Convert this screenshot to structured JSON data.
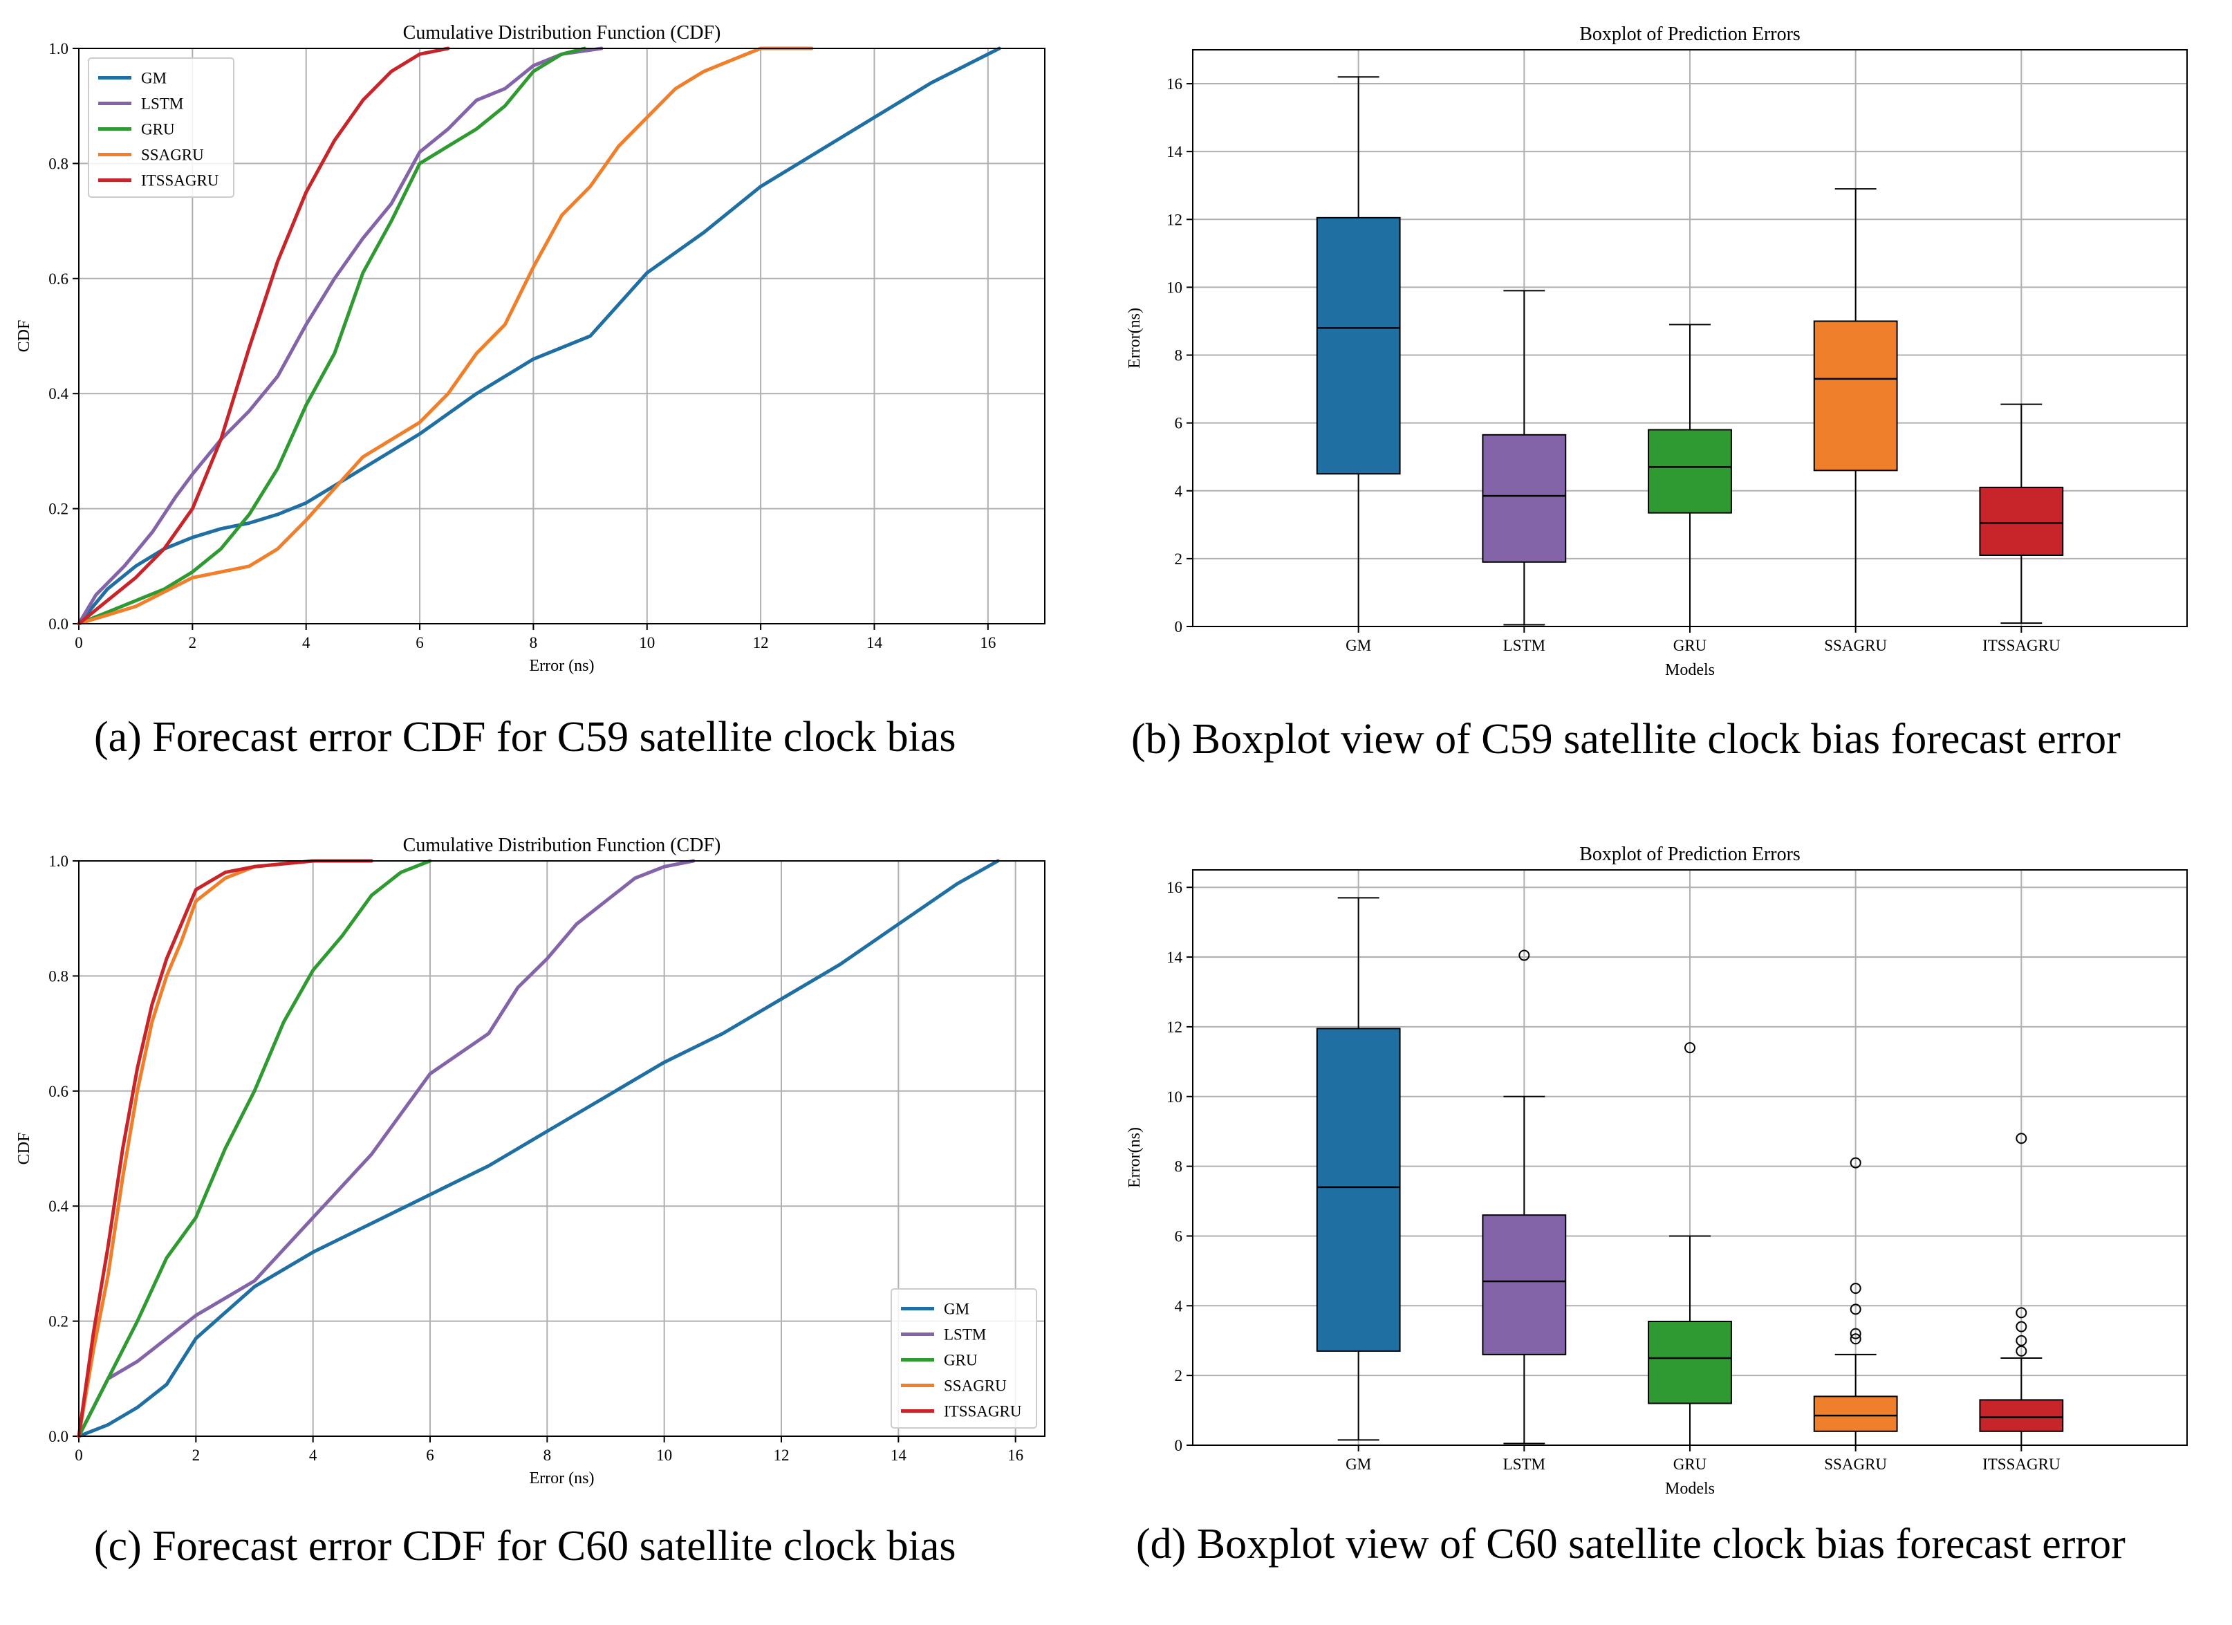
{
  "colors": {
    "GM": "#1f6fa3",
    "LSTM": "#8464a8",
    "GRU": "#2f9a32",
    "SSAGRU": "#ef7f2a",
    "ITSSAGRU": "#c8252a",
    "grid": "#b0b0b0",
    "axis": "#000000"
  },
  "chart_data": [
    {
      "id": "a",
      "type": "line",
      "title": "Cumulative Distribution Function (CDF)",
      "xlabel": "Error (ns)",
      "ylabel": "CDF",
      "xlim": [
        0,
        17
      ],
      "ylim": [
        0,
        1
      ],
      "xticks": [
        0,
        2,
        4,
        6,
        8,
        10,
        12,
        14,
        16
      ],
      "yticks": [
        0.0,
        0.2,
        0.4,
        0.6,
        0.8,
        1.0
      ],
      "legend": "top-left",
      "series": [
        {
          "name": "GM",
          "color": "GM",
          "points": [
            [
              0,
              0
            ],
            [
              0.5,
              0.06
            ],
            [
              1,
              0.1
            ],
            [
              1.5,
              0.13
            ],
            [
              2,
              0.15
            ],
            [
              2.5,
              0.165
            ],
            [
              3,
              0.175
            ],
            [
              3.5,
              0.19
            ],
            [
              4,
              0.21
            ],
            [
              5,
              0.27
            ],
            [
              6,
              0.33
            ],
            [
              7,
              0.4
            ],
            [
              8,
              0.46
            ],
            [
              9,
              0.5
            ],
            [
              10,
              0.61
            ],
            [
              11,
              0.68
            ],
            [
              12,
              0.76
            ],
            [
              13,
              0.82
            ],
            [
              14,
              0.88
            ],
            [
              15,
              0.94
            ],
            [
              16.2,
              1.0
            ]
          ]
        },
        {
          "name": "LSTM",
          "color": "LSTM",
          "points": [
            [
              0,
              0
            ],
            [
              0.3,
              0.05
            ],
            [
              0.8,
              0.1
            ],
            [
              1.3,
              0.16
            ],
            [
              1.7,
              0.22
            ],
            [
              2,
              0.26
            ],
            [
              2.5,
              0.32
            ],
            [
              3,
              0.37
            ],
            [
              3.5,
              0.43
            ],
            [
              4,
              0.52
            ],
            [
              4.5,
              0.6
            ],
            [
              5,
              0.67
            ],
            [
              5.5,
              0.73
            ],
            [
              6,
              0.82
            ],
            [
              6.5,
              0.86
            ],
            [
              7,
              0.91
            ],
            [
              7.5,
              0.93
            ],
            [
              8,
              0.97
            ],
            [
              8.5,
              0.99
            ],
            [
              9.2,
              1.0
            ]
          ]
        },
        {
          "name": "GRU",
          "color": "GRU",
          "points": [
            [
              0,
              0
            ],
            [
              0.5,
              0.02
            ],
            [
              1,
              0.04
            ],
            [
              1.5,
              0.06
            ],
            [
              2,
              0.09
            ],
            [
              2.5,
              0.13
            ],
            [
              3,
              0.19
            ],
            [
              3.5,
              0.27
            ],
            [
              4,
              0.38
            ],
            [
              4.5,
              0.47
            ],
            [
              5,
              0.61
            ],
            [
              5.5,
              0.7
            ],
            [
              6,
              0.8
            ],
            [
              6.5,
              0.83
            ],
            [
              7,
              0.86
            ],
            [
              7.5,
              0.9
            ],
            [
              8,
              0.96
            ],
            [
              8.5,
              0.99
            ],
            [
              8.9,
              1.0
            ]
          ]
        },
        {
          "name": "SSAGRU",
          "color": "SSAGRU",
          "points": [
            [
              0,
              0
            ],
            [
              1,
              0.03
            ],
            [
              2,
              0.08
            ],
            [
              3,
              0.1
            ],
            [
              3.5,
              0.13
            ],
            [
              4,
              0.18
            ],
            [
              5,
              0.29
            ],
            [
              6,
              0.35
            ],
            [
              6.5,
              0.4
            ],
            [
              7,
              0.47
            ],
            [
              7.5,
              0.52
            ],
            [
              8,
              0.62
            ],
            [
              8.5,
              0.71
            ],
            [
              9,
              0.76
            ],
            [
              9.5,
              0.83
            ],
            [
              10,
              0.88
            ],
            [
              10.5,
              0.93
            ],
            [
              11,
              0.96
            ],
            [
              11.5,
              0.98
            ],
            [
              12,
              1.0
            ],
            [
              12.9,
              1.0
            ]
          ]
        },
        {
          "name": "ITSSAGRU",
          "color": "ITSSAGRU",
          "points": [
            [
              0,
              0
            ],
            [
              0.5,
              0.04
            ],
            [
              1,
              0.08
            ],
            [
              1.5,
              0.13
            ],
            [
              2,
              0.2
            ],
            [
              2.5,
              0.32
            ],
            [
              3,
              0.48
            ],
            [
              3.5,
              0.63
            ],
            [
              4,
              0.75
            ],
            [
              4.5,
              0.84
            ],
            [
              5,
              0.91
            ],
            [
              5.5,
              0.96
            ],
            [
              6,
              0.99
            ],
            [
              6.5,
              1.0
            ]
          ]
        }
      ]
    },
    {
      "id": "b",
      "type": "boxplot",
      "title": "Boxplot of Prediction Errors",
      "xlabel": "Models",
      "ylabel": "Error(ns)",
      "ylim": [
        0,
        17
      ],
      "yticks": [
        0,
        2,
        4,
        6,
        8,
        10,
        12,
        14,
        16
      ],
      "categories": [
        "GM",
        "LSTM",
        "GRU",
        "SSAGRU",
        "ITSSAGRU"
      ],
      "boxes": [
        {
          "name": "GM",
          "color": "GM",
          "whislo": 0.0,
          "q1": 4.5,
          "med": 8.8,
          "q3": 12.05,
          "whishi": 16.2,
          "fliers": []
        },
        {
          "name": "LSTM",
          "color": "LSTM",
          "whislo": 0.05,
          "q1": 1.9,
          "med": 3.85,
          "q3": 5.65,
          "whishi": 9.9,
          "fliers": []
        },
        {
          "name": "GRU",
          "color": "GRU",
          "whislo": 0.0,
          "q1": 3.35,
          "med": 4.7,
          "q3": 5.8,
          "whishi": 8.9,
          "fliers": []
        },
        {
          "name": "SSAGRU",
          "color": "SSAGRU",
          "whislo": 0.0,
          "q1": 4.6,
          "med": 7.3,
          "q3": 9.0,
          "whishi": 12.9,
          "fliers": []
        },
        {
          "name": "ITSSAGRU",
          "color": "ITSSAGRU",
          "whislo": 0.1,
          "q1": 2.1,
          "med": 3.05,
          "q3": 4.1,
          "whishi": 6.55,
          "fliers": []
        }
      ]
    },
    {
      "id": "c",
      "type": "line",
      "title": "Cumulative Distribution Function (CDF)",
      "xlabel": "Error (ns)",
      "ylabel": "CDF",
      "xlim": [
        0,
        16.5
      ],
      "ylim": [
        0,
        1
      ],
      "xticks": [
        0,
        2,
        4,
        6,
        8,
        10,
        12,
        14,
        16
      ],
      "yticks": [
        0.0,
        0.2,
        0.4,
        0.6,
        0.8,
        1.0
      ],
      "legend": "bottom-right",
      "series": [
        {
          "name": "GM",
          "color": "GM",
          "points": [
            [
              0,
              0
            ],
            [
              0.5,
              0.02
            ],
            [
              1,
              0.05
            ],
            [
              1.5,
              0.09
            ],
            [
              2,
              0.17
            ],
            [
              3,
              0.26
            ],
            [
              4,
              0.32
            ],
            [
              5,
              0.37
            ],
            [
              6,
              0.42
            ],
            [
              7,
              0.47
            ],
            [
              8,
              0.53
            ],
            [
              9,
              0.59
            ],
            [
              10,
              0.65
            ],
            [
              11,
              0.7
            ],
            [
              12,
              0.76
            ],
            [
              13,
              0.82
            ],
            [
              14,
              0.89
            ],
            [
              15,
              0.96
            ],
            [
              15.7,
              1.0
            ]
          ]
        },
        {
          "name": "LSTM",
          "color": "LSTM",
          "points": [
            [
              0,
              0
            ],
            [
              0.5,
              0.1
            ],
            [
              1,
              0.13
            ],
            [
              1.5,
              0.17
            ],
            [
              2,
              0.21
            ],
            [
              3,
              0.27
            ],
            [
              4,
              0.38
            ],
            [
              5,
              0.49
            ],
            [
              6,
              0.63
            ],
            [
              7,
              0.7
            ],
            [
              7.5,
              0.78
            ],
            [
              8,
              0.83
            ],
            [
              8.5,
              0.89
            ],
            [
              9,
              0.93
            ],
            [
              9.5,
              0.97
            ],
            [
              10,
              0.99
            ],
            [
              10.5,
              1.0
            ]
          ]
        },
        {
          "name": "GRU",
          "color": "GRU",
          "points": [
            [
              0,
              0
            ],
            [
              0.5,
              0.1
            ],
            [
              1,
              0.2
            ],
            [
              1.5,
              0.31
            ],
            [
              2,
              0.38
            ],
            [
              2.5,
              0.5
            ],
            [
              3,
              0.6
            ],
            [
              3.5,
              0.72
            ],
            [
              4,
              0.81
            ],
            [
              4.5,
              0.87
            ],
            [
              5,
              0.94
            ],
            [
              5.5,
              0.98
            ],
            [
              6,
              1.0
            ]
          ]
        },
        {
          "name": "SSAGRU",
          "color": "SSAGRU",
          "points": [
            [
              0,
              0
            ],
            [
              0.25,
              0.15
            ],
            [
              0.5,
              0.28
            ],
            [
              0.75,
              0.45
            ],
            [
              1,
              0.6
            ],
            [
              1.25,
              0.72
            ],
            [
              1.5,
              0.8
            ],
            [
              1.75,
              0.86
            ],
            [
              2,
              0.93
            ],
            [
              2.5,
              0.97
            ],
            [
              3,
              0.99
            ],
            [
              4,
              1.0
            ],
            [
              5,
              1.0
            ]
          ]
        },
        {
          "name": "ITSSAGRU",
          "color": "ITSSAGRU",
          "points": [
            [
              0,
              0
            ],
            [
              0.25,
              0.18
            ],
            [
              0.5,
              0.33
            ],
            [
              0.75,
              0.5
            ],
            [
              1,
              0.64
            ],
            [
              1.25,
              0.75
            ],
            [
              1.5,
              0.83
            ],
            [
              1.75,
              0.89
            ],
            [
              2,
              0.95
            ],
            [
              2.5,
              0.98
            ],
            [
              3,
              0.99
            ],
            [
              4,
              1.0
            ],
            [
              5,
              1.0
            ]
          ]
        }
      ]
    },
    {
      "id": "d",
      "type": "boxplot",
      "title": "Boxplot of Prediction Errors",
      "xlabel": "Models",
      "ylabel": "Error(ns)",
      "ylim": [
        0,
        16.5
      ],
      "yticks": [
        0,
        2,
        4,
        6,
        8,
        10,
        12,
        14,
        16
      ],
      "categories": [
        "GM",
        "LSTM",
        "GRU",
        "SSAGRU",
        "ITSSAGRU"
      ],
      "boxes": [
        {
          "name": "GM",
          "color": "GM",
          "whislo": 0.15,
          "q1": 2.7,
          "med": 7.4,
          "q3": 11.95,
          "whishi": 15.7,
          "fliers": []
        },
        {
          "name": "LSTM",
          "color": "LSTM",
          "whislo": 0.05,
          "q1": 2.6,
          "med": 4.7,
          "q3": 6.6,
          "whishi": 10.0,
          "fliers": [
            14.05
          ]
        },
        {
          "name": "GRU",
          "color": "GRU",
          "whislo": 0.0,
          "q1": 1.2,
          "med": 2.5,
          "q3": 3.55,
          "whishi": 6.0,
          "fliers": [
            11.4
          ]
        },
        {
          "name": "SSAGRU",
          "color": "SSAGRU",
          "whislo": 0.0,
          "q1": 0.4,
          "med": 0.85,
          "q3": 1.4,
          "whishi": 2.6,
          "fliers": [
            3.05,
            3.2,
            3.9,
            4.5,
            8.1
          ]
        },
        {
          "name": "ITSSAGRU",
          "color": "ITSSAGRU",
          "whislo": 0.0,
          "q1": 0.4,
          "med": 0.8,
          "q3": 1.3,
          "whishi": 2.5,
          "fliers": [
            2.7,
            3.0,
            3.4,
            3.8,
            8.8
          ]
        }
      ]
    }
  ],
  "captions": {
    "a": "(a) Forecast error CDF for C59 satellite clock bias",
    "b": "(b) Boxplot view of C59 satellite clock bias forecast error",
    "c": "(c) Forecast error CDF for C60 satellite clock bias",
    "d": "(d) Boxplot view of C60 satellite clock bias forecast error"
  }
}
